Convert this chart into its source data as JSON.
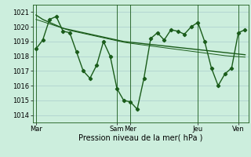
{
  "background_color": "#cceedd",
  "grid_color": "#aacccc",
  "line_color": "#1a5c1a",
  "marker": "D",
  "marker_size": 2.2,
  "linewidth": 1.0,
  "ylim": [
    1013.5,
    1021.5
  ],
  "yticks": [
    1014,
    1015,
    1016,
    1017,
    1018,
    1019,
    1020,
    1021
  ],
  "xlabel": "Pression niveau de la mer( hPa )",
  "xlabel_fontsize": 7,
  "tick_fontsize": 6,
  "xtick_labels": [
    "Mar",
    "Sam",
    "Mer",
    "Jeu",
    "Ven"
  ],
  "xtick_positions": [
    0,
    12,
    14,
    24,
    30
  ],
  "total_points": 32,
  "main_series": [
    1018.5,
    1019.1,
    1020.5,
    1020.7,
    1019.7,
    1019.6,
    1018.3,
    1017.0,
    1016.5,
    1017.4,
    1019.0,
    1018.0,
    1015.8,
    1015.0,
    1014.9,
    1014.4,
    1016.5,
    1019.2,
    1019.6,
    1019.1,
    1019.8,
    1019.7,
    1019.5,
    1020.0,
    1020.3,
    1019.0,
    1017.2,
    1016.0,
    1016.8,
    1017.2,
    1019.6,
    1019.8
  ],
  "trend_line1": [
    1020.8,
    1020.5,
    1020.3,
    1020.1,
    1019.9,
    1019.8,
    1019.7,
    1019.6,
    1019.5,
    1019.4,
    1019.3,
    1019.2,
    1019.1,
    1019.0,
    1018.95,
    1018.9,
    1018.85,
    1018.8,
    1018.75,
    1018.7,
    1018.65,
    1018.6,
    1018.55,
    1018.5,
    1018.45,
    1018.4,
    1018.35,
    1018.3,
    1018.25,
    1018.2,
    1018.15,
    1018.1
  ],
  "trend_line2": [
    1020.5,
    1020.35,
    1020.2,
    1020.05,
    1019.9,
    1019.75,
    1019.65,
    1019.55,
    1019.45,
    1019.35,
    1019.25,
    1019.15,
    1019.05,
    1018.95,
    1018.88,
    1018.82,
    1018.76,
    1018.7,
    1018.64,
    1018.58,
    1018.52,
    1018.46,
    1018.4,
    1018.34,
    1018.28,
    1018.22,
    1018.16,
    1018.1,
    1018.04,
    1018.0,
    1017.97,
    1017.94
  ],
  "vline_positions": [
    0,
    12,
    14,
    24,
    30
  ],
  "figsize": [
    3.2,
    2.0
  ],
  "dpi": 100
}
